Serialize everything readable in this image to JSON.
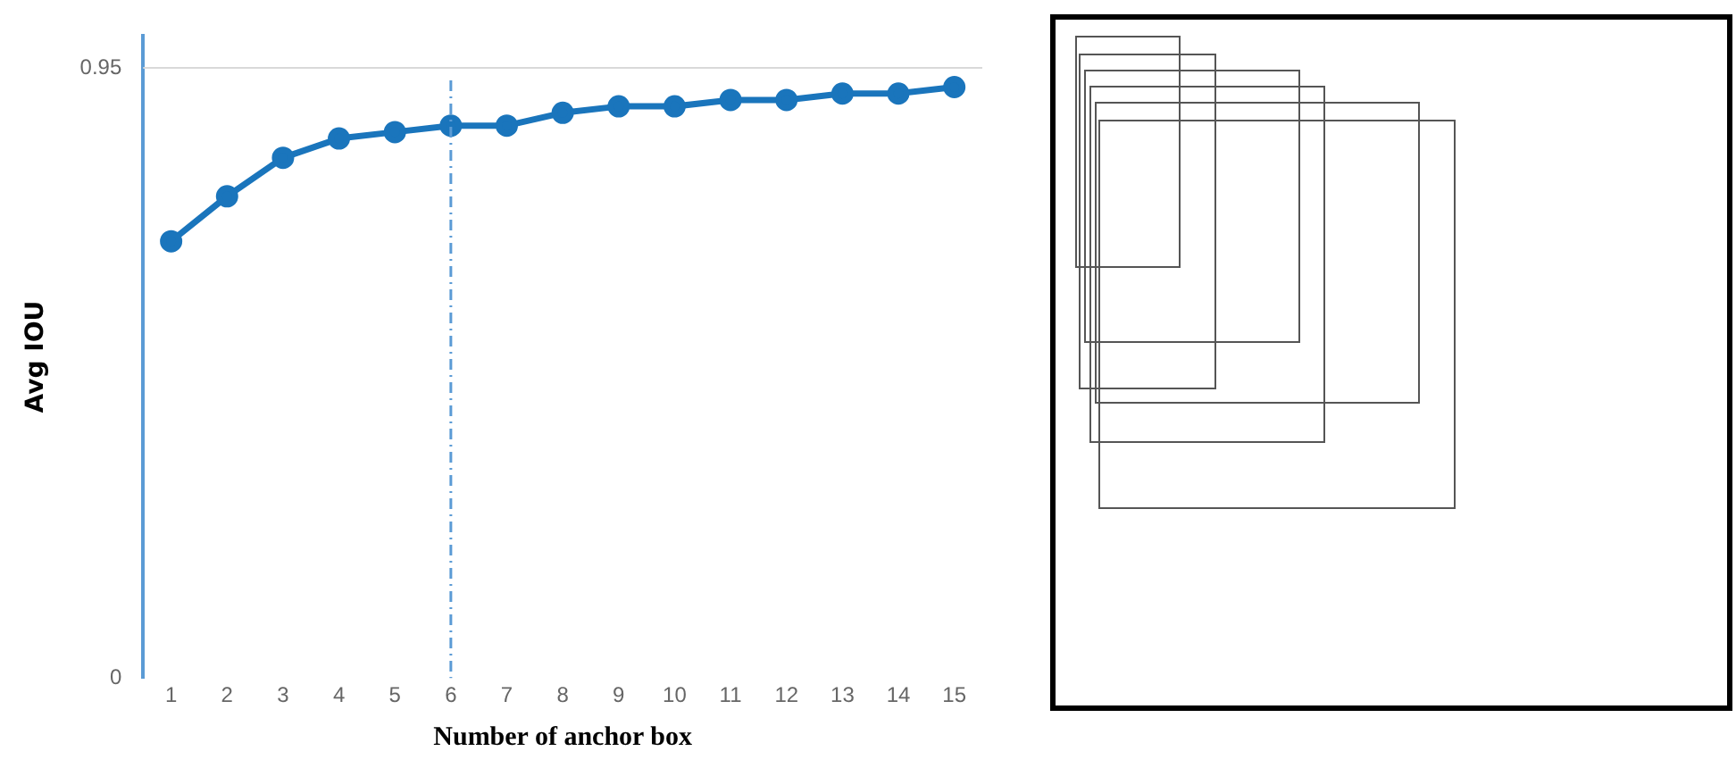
{
  "chart_data": {
    "type": "line",
    "xlabel": "Number of anchor box",
    "ylabel": "Avg IOU",
    "x": [
      1,
      2,
      3,
      4,
      5,
      6,
      7,
      8,
      9,
      10,
      11,
      12,
      13,
      14,
      15
    ],
    "series": [
      {
        "color": "#1a75bc",
        "values": [
          0.68,
          0.75,
          0.81,
          0.84,
          0.85,
          0.86,
          0.86,
          0.88,
          0.89,
          0.89,
          0.9,
          0.9,
          0.91,
          0.91,
          0.92
        ]
      }
    ],
    "xlim": [
      0.5,
      15.5
    ],
    "xticks": [
      1,
      2,
      3,
      4,
      5,
      6,
      7,
      8,
      9,
      10,
      11,
      12,
      13,
      14,
      15
    ],
    "ylim": [
      0,
      1
    ],
    "yticks": [
      0,
      0.95
    ],
    "ref_lines": [
      {
        "axis": "x",
        "value": 6,
        "color": "#5b9bd5",
        "line_style": "dashdot"
      },
      {
        "axis": "y",
        "value": 0.95,
        "color": "#d9d9d9",
        "line_style": "solid"
      }
    ],
    "legend": false,
    "marker": "circle",
    "line_style": "solid"
  }
}
